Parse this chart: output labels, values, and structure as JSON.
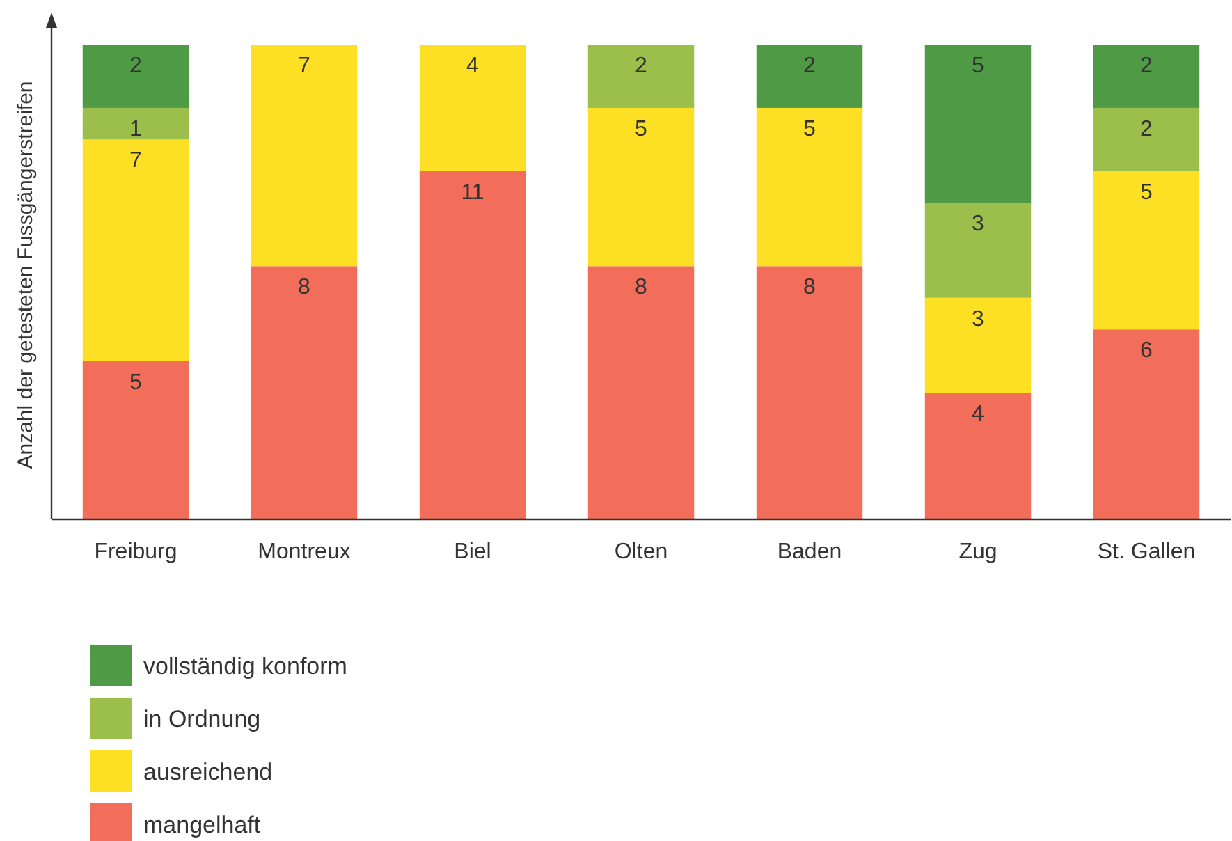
{
  "chart_data": {
    "type": "bar",
    "stacked": true,
    "data_labels": true,
    "legend": "bottom",
    "grid": false,
    "ylabel": "Anzahl der getesteten Fussgängerstreifen",
    "categories": [
      "Freiburg",
      "Montreux",
      "Biel",
      "Olten",
      "Baden",
      "Zug",
      "St. Gallen"
    ],
    "series": [
      {
        "name": "mangelhaft",
        "color": "#f26d5a",
        "values": [
          5,
          8,
          11,
          8,
          8,
          4,
          6
        ]
      },
      {
        "name": "ausreichend",
        "color": "#fde024",
        "values": [
          7,
          7,
          4,
          5,
          5,
          3,
          5
        ]
      },
      {
        "name": "in Ordnung",
        "color": "#9bbf4a",
        "values": [
          1,
          null,
          null,
          2,
          null,
          3,
          2
        ]
      },
      {
        "name": "vollständig konform",
        "color": "#4e9a45",
        "values": [
          2,
          null,
          null,
          null,
          2,
          5,
          2
        ]
      }
    ]
  }
}
